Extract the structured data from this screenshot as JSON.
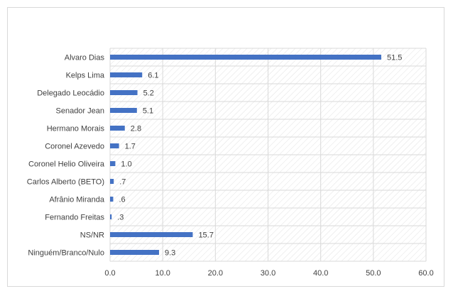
{
  "chart_data": {
    "type": "bar",
    "orientation": "horizontal",
    "title": "",
    "xlabel": "",
    "ylabel": "",
    "xlim": [
      0,
      60
    ],
    "ticks": [
      "0.0",
      "10.0",
      "20.0",
      "30.0",
      "40.0",
      "50.0",
      "60.0"
    ],
    "grid": true,
    "legend": "none",
    "bar_color": "#4472c4",
    "categories": [
      "Alvaro Dias",
      "Kelps Lima",
      "Delegado Leocádio",
      "Senador Jean",
      "Hermano Morais",
      "Coronel Azevedo",
      "Coronel Helio Oliveira",
      "Carlos Alberto (BETO)",
      "Afrânio Miranda",
      "Fernando Freitas",
      "NS/NR",
      "Ninguém/Branco/Nulo"
    ],
    "values": [
      51.5,
      6.1,
      5.2,
      5.1,
      2.8,
      1.7,
      1.0,
      0.7,
      0.6,
      0.3,
      15.7,
      9.3
    ],
    "value_labels": [
      "51.5",
      "6.1",
      "5.2",
      "5.1",
      "2.8",
      "1.7",
      "1.0",
      ".7",
      ".6",
      ".3",
      "15.7",
      "9.3"
    ]
  }
}
